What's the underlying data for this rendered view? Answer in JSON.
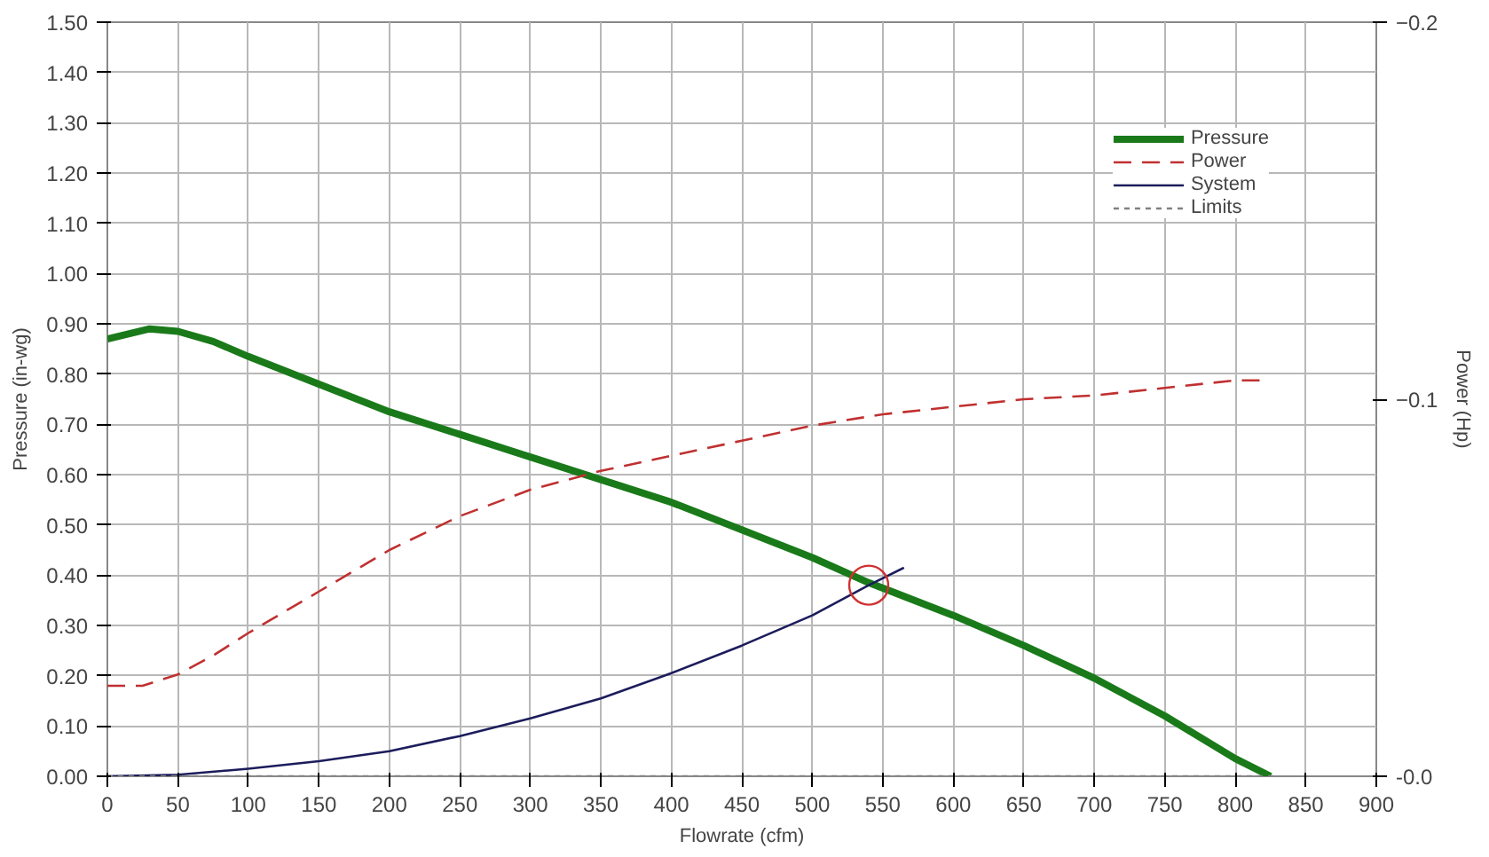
{
  "chart_data": {
    "type": "line",
    "xlabel": "Flowrate (cfm)",
    "ylabel": "Pressure (in-wg)",
    "y2label": "Power (Hp)",
    "xlim": [
      0,
      900
    ],
    "xticks": [
      0,
      50,
      100,
      150,
      200,
      250,
      300,
      350,
      400,
      450,
      500,
      550,
      600,
      650,
      700,
      750,
      800,
      850,
      900
    ],
    "ylim": [
      0,
      1.5
    ],
    "yticks": [
      {
        "value": 0,
        "label": "0.00"
      },
      {
        "value": 0.1,
        "label": "0.10"
      },
      {
        "value": 0.2,
        "label": "0.20"
      },
      {
        "value": 0.3,
        "label": "0.30"
      },
      {
        "value": 0.4,
        "label": "0.40"
      },
      {
        "value": 0.5,
        "label": "0.50"
      },
      {
        "value": 0.6,
        "label": "0.60"
      },
      {
        "value": 0.7,
        "label": "0.70"
      },
      {
        "value": 0.8,
        "label": "0.80"
      },
      {
        "value": 0.9,
        "label": "0.90"
      },
      {
        "value": 1.0,
        "label": "1.00"
      },
      {
        "value": 1.1,
        "label": "1.10"
      },
      {
        "value": 1.2,
        "label": "1.20"
      },
      {
        "value": 1.3,
        "label": "1.30"
      },
      {
        "value": 1.4,
        "label": "1.40"
      },
      {
        "value": 1.5,
        "label": "1.50"
      }
    ],
    "y2lim": [
      0,
      -0.2
    ],
    "y2ticks": [
      {
        "value": 0,
        "label": "-0.0"
      },
      -0.1,
      -0.2
    ],
    "grid": true,
    "legend": "top right",
    "marker": "none",
    "series": [
      {
        "name": "Pressure",
        "color": "#1a7a1a",
        "line_style": "solid",
        "x": [
          0,
          30,
          50,
          75,
          100,
          150,
          200,
          250,
          300,
          350,
          400,
          450,
          500,
          540,
          600,
          650,
          700,
          750,
          800,
          825
        ],
        "values": [
          0.87,
          0.89,
          0.885,
          0.865,
          0.835,
          0.78,
          0.725,
          0.68,
          0.635,
          0.59,
          0.545,
          0.49,
          0.435,
          0.385,
          0.32,
          0.26,
          0.195,
          0.12,
          0.035,
          0
        ]
      },
      {
        "name": "Power",
        "color": "#c03030",
        "line_style": "dashed",
        "axis": "y2",
        "x": [
          0,
          25,
          50,
          75,
          100,
          150,
          200,
          250,
          300,
          350,
          400,
          450,
          500,
          550,
          600,
          650,
          700,
          750,
          800,
          820
        ],
        "values": [
          -0.024,
          -0.024,
          -0.027,
          -0.032,
          -0.038,
          -0.049,
          -0.06,
          -0.069,
          -0.076,
          -0.081,
          -0.085,
          -0.089,
          -0.093,
          -0.096,
          -0.098,
          -0.1,
          -0.101,
          -0.103,
          -0.105,
          -0.105
        ]
      },
      {
        "name": "System",
        "color": "#1c1c5c",
        "line_style": "solid",
        "x": [
          0,
          50,
          100,
          150,
          200,
          250,
          300,
          350,
          400,
          450,
          500,
          540,
          565
        ],
        "values": [
          0,
          0.003,
          0.015,
          0.03,
          0.05,
          0.08,
          0.115,
          0.155,
          0.205,
          0.26,
          0.32,
          0.38,
          0.415
        ]
      },
      {
        "name": "Limits",
        "color": "#808080",
        "line_style": "dotted",
        "x": [
          0,
          830
        ],
        "values": [
          0,
          0
        ]
      },
      {
        "type": "scatter",
        "marker": "circle",
        "color": "#d03030",
        "x": [
          540
        ],
        "values": [
          0.38
        ]
      }
    ]
  }
}
